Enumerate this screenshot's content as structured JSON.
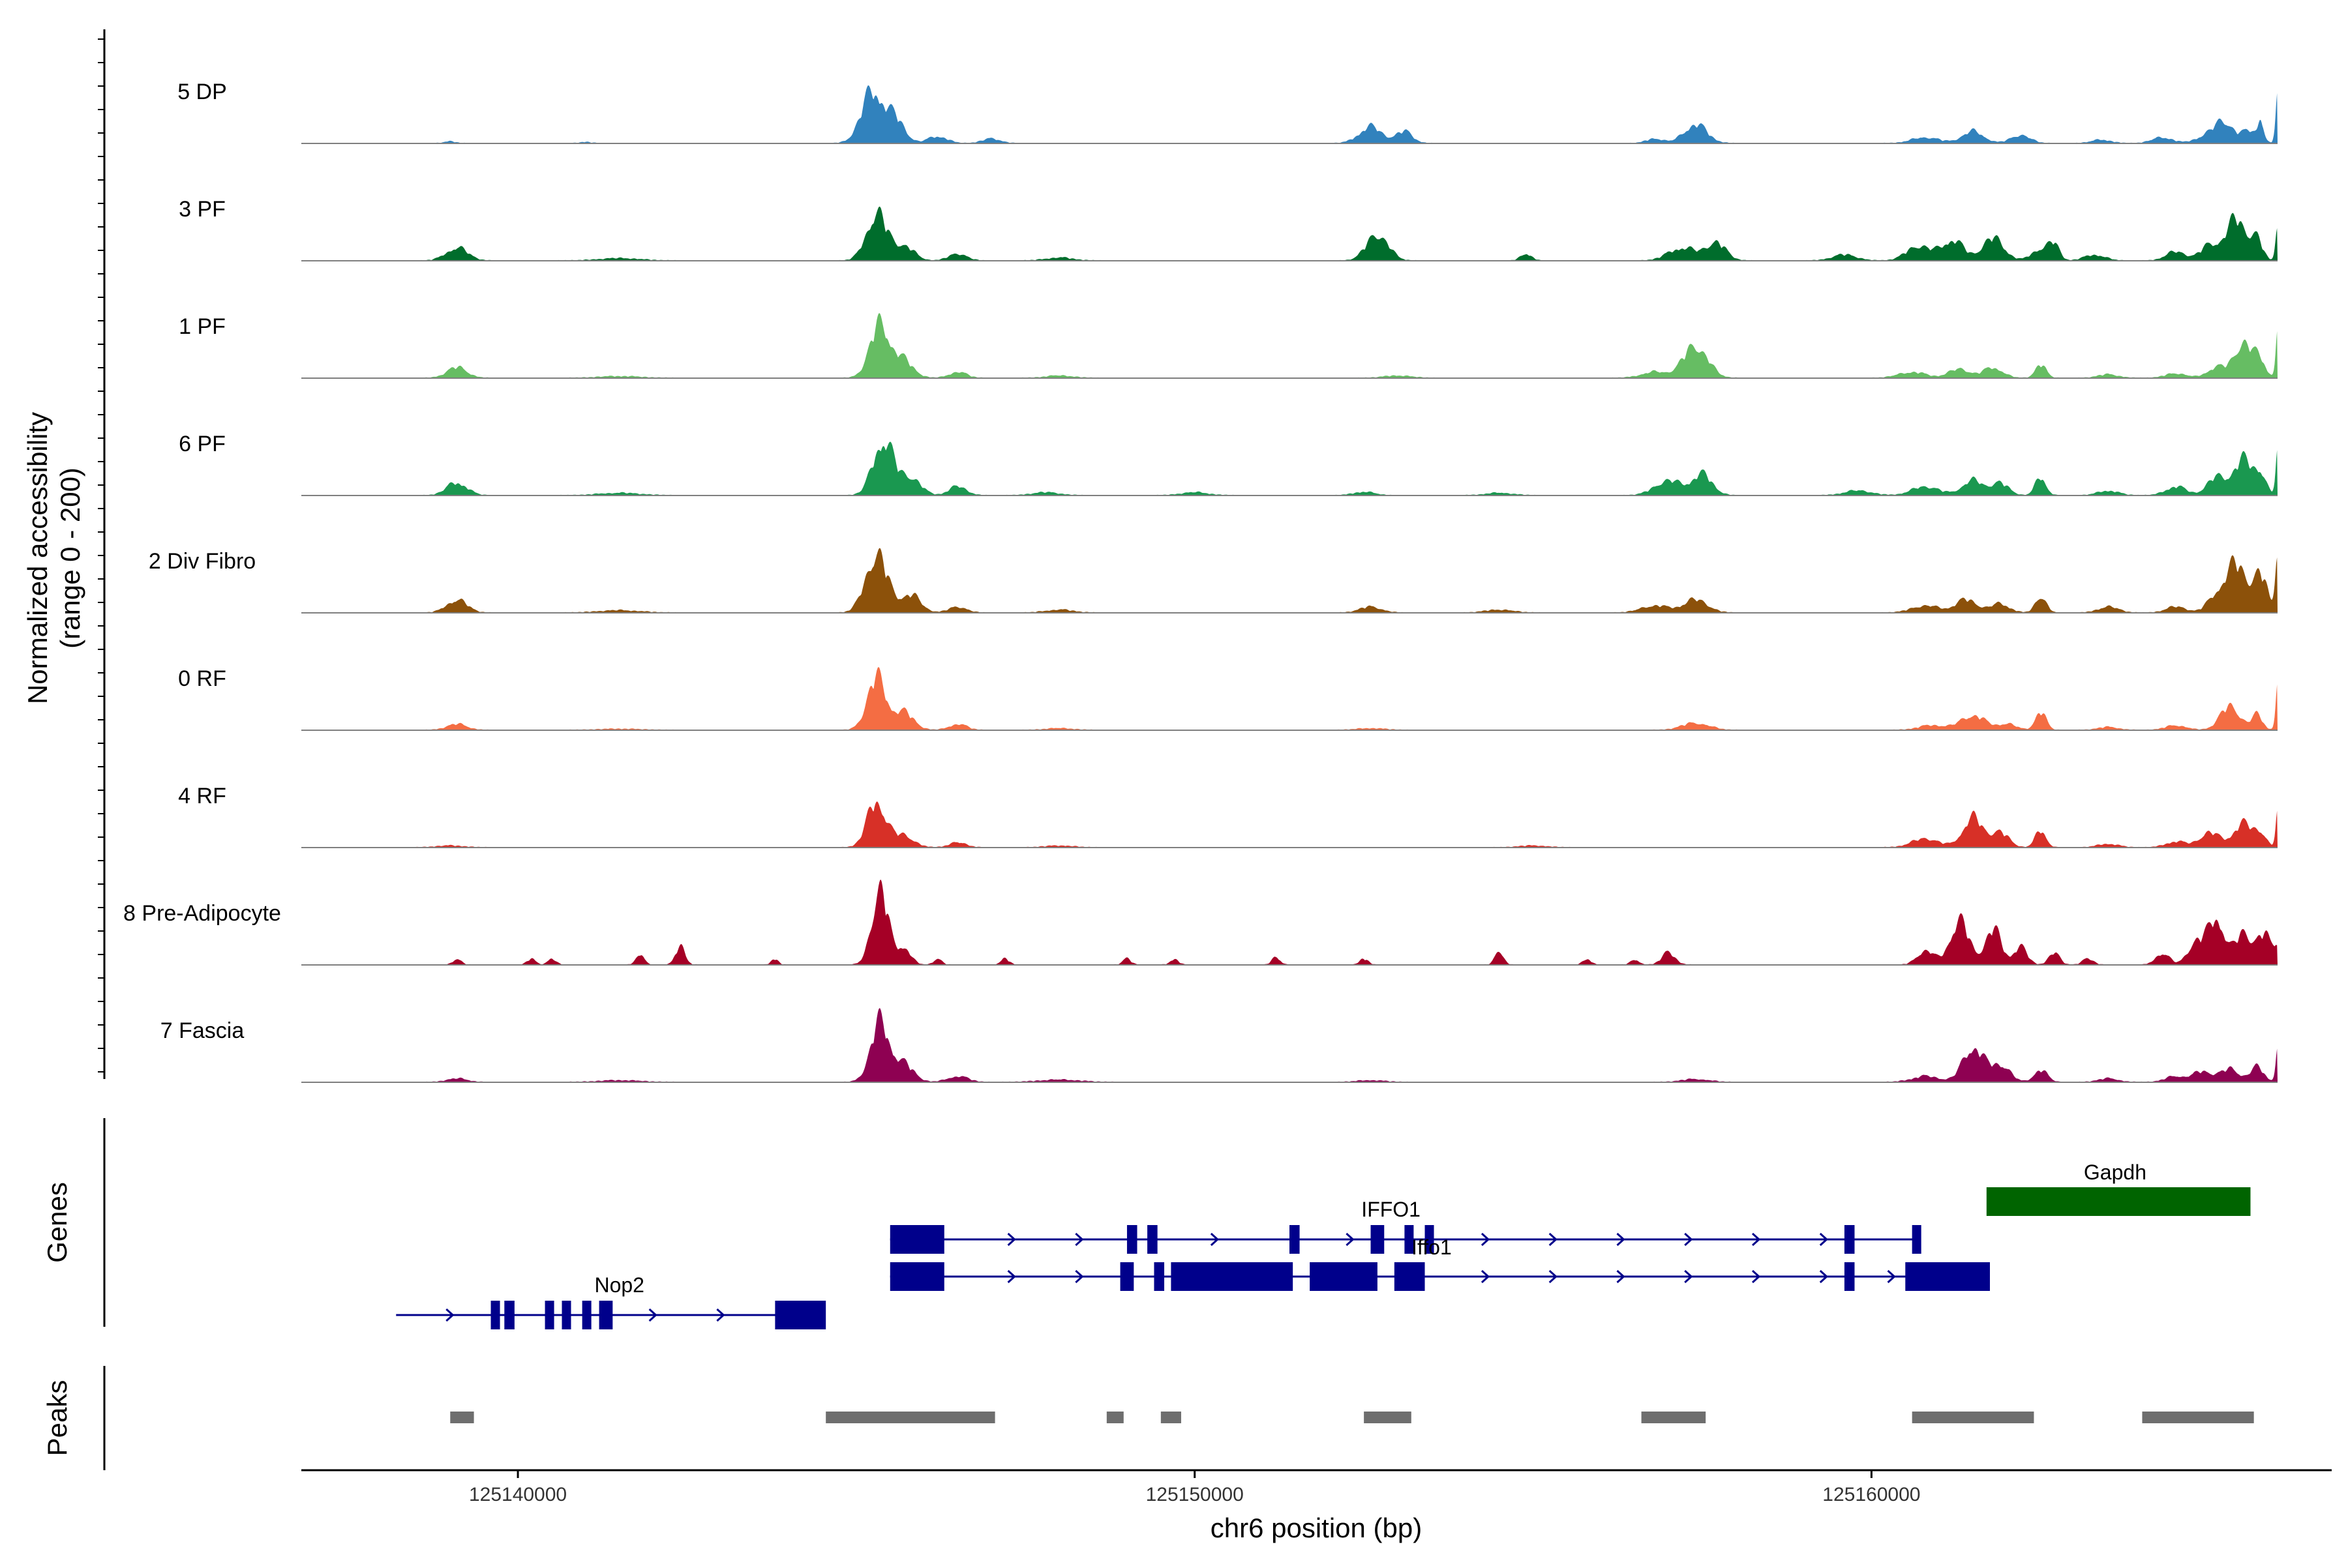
{
  "chart_data": {
    "type": "coverage-tracks",
    "y_axis_title_line1": "Normalized accessibility",
    "y_axis_title_line2": "(range 0 - 200)",
    "xlabel": "chr6 position (bp)",
    "x_range": [
      125136800,
      125166800
    ],
    "x_ticks": [
      125140000,
      125150000,
      125160000
    ],
    "x_tick_labels": [
      "125140000",
      "125150000",
      "125160000"
    ],
    "tracks": [
      {
        "name": "5 DP",
        "color": "#3182bd",
        "peaks": [
          [
            125139000,
            3,
            80
          ],
          [
            125141000,
            2,
            80
          ],
          [
            125145250,
            90,
            170
          ],
          [
            125145600,
            35,
            130
          ],
          [
            125146200,
            12,
            140
          ],
          [
            125147000,
            8,
            130
          ],
          [
            125152600,
            28,
            170
          ],
          [
            125153100,
            20,
            120
          ],
          [
            125157400,
            32,
            170
          ],
          [
            125156800,
            8,
            120
          ],
          [
            125160800,
            10,
            200
          ],
          [
            125161500,
            20,
            160
          ],
          [
            125162200,
            14,
            140
          ],
          [
            125163400,
            6,
            140
          ],
          [
            125164300,
            10,
            150
          ],
          [
            125165200,
            38,
            140
          ],
          [
            125165600,
            22,
            120
          ],
          [
            125165750,
            35,
            40
          ],
          [
            125166000,
            85,
            30
          ],
          [
            125164900,
            10,
            140
          ]
        ]
      },
      {
        "name": "3 PF",
        "color": "#006d2c",
        "peaks": [
          [
            125139100,
            22,
            160
          ],
          [
            125141500,
            4,
            300
          ],
          [
            125145300,
            80,
            150
          ],
          [
            125145700,
            25,
            150
          ],
          [
            125146500,
            12,
            130
          ],
          [
            125148000,
            5,
            200
          ],
          [
            125152700,
            45,
            160
          ],
          [
            125154900,
            12,
            80
          ],
          [
            125157200,
            22,
            200
          ],
          [
            125157700,
            30,
            150
          ],
          [
            125159600,
            10,
            180
          ],
          [
            125160700,
            25,
            180
          ],
          [
            125161200,
            35,
            160
          ],
          [
            125161800,
            38,
            160
          ],
          [
            125162500,
            20,
            130
          ],
          [
            125162700,
            25,
            80
          ],
          [
            125163300,
            10,
            150
          ],
          [
            125164500,
            15,
            150
          ],
          [
            125165000,
            25,
            140
          ],
          [
            125165400,
            70,
            160
          ],
          [
            125165700,
            30,
            80
          ],
          [
            125166000,
            70,
            30
          ]
        ]
      },
      {
        "name": "1 PF",
        "color": "#66bd63",
        "peaks": [
          [
            125139100,
            18,
            150
          ],
          [
            125141500,
            3,
            300
          ],
          [
            125145350,
            90,
            150
          ],
          [
            125145700,
            28,
            150
          ],
          [
            125146500,
            10,
            130
          ],
          [
            125148000,
            4,
            200
          ],
          [
            125153000,
            4,
            200
          ],
          [
            125156800,
            10,
            200
          ],
          [
            125157400,
            55,
            180
          ],
          [
            125160600,
            10,
            200
          ],
          [
            125161300,
            15,
            160
          ],
          [
            125161800,
            18,
            140
          ],
          [
            125162500,
            22,
            80
          ],
          [
            125163500,
            6,
            150
          ],
          [
            125164500,
            8,
            150
          ],
          [
            125165100,
            18,
            140
          ],
          [
            125165500,
            60,
            140
          ],
          [
            125165750,
            25,
            80
          ],
          [
            125166000,
            80,
            30
          ]
        ]
      },
      {
        "name": "6 PF",
        "color": "#1a9850",
        "peaks": [
          [
            125139100,
            22,
            150
          ],
          [
            125141500,
            4,
            300
          ],
          [
            125145400,
            95,
            150
          ],
          [
            125145800,
            30,
            150
          ],
          [
            125146500,
            15,
            130
          ],
          [
            125147800,
            5,
            200
          ],
          [
            125150000,
            5,
            200
          ],
          [
            125152500,
            6,
            150
          ],
          [
            125154500,
            4,
            200
          ],
          [
            125157000,
            25,
            200
          ],
          [
            125157500,
            35,
            150
          ],
          [
            125159800,
            8,
            200
          ],
          [
            125160800,
            15,
            200
          ],
          [
            125161500,
            25,
            160
          ],
          [
            125161900,
            20,
            130
          ],
          [
            125162500,
            30,
            80
          ],
          [
            125163500,
            8,
            150
          ],
          [
            125164500,
            15,
            150
          ],
          [
            125165100,
            30,
            140
          ],
          [
            125165500,
            60,
            150
          ],
          [
            125165750,
            30,
            80
          ],
          [
            125166000,
            75,
            30
          ]
        ]
      },
      {
        "name": "2 Div Fibro",
        "color": "#8c510a",
        "peaks": [
          [
            125139100,
            22,
            150
          ],
          [
            125141500,
            4,
            300
          ],
          [
            125145300,
            100,
            160
          ],
          [
            125145800,
            30,
            150
          ],
          [
            125146500,
            10,
            130
          ],
          [
            125148000,
            5,
            200
          ],
          [
            125152600,
            10,
            160
          ],
          [
            125154500,
            5,
            200
          ],
          [
            125156800,
            12,
            200
          ],
          [
            125157400,
            22,
            180
          ],
          [
            125160800,
            12,
            200
          ],
          [
            125161400,
            22,
            160
          ],
          [
            125161900,
            15,
            140
          ],
          [
            125162500,
            28,
            80
          ],
          [
            125163500,
            10,
            150
          ],
          [
            125164500,
            10,
            150
          ],
          [
            125165100,
            25,
            140
          ],
          [
            125165400,
            80,
            160
          ],
          [
            125165750,
            60,
            100
          ],
          [
            125166000,
            110,
            35
          ]
        ]
      },
      {
        "name": "0 RF",
        "color": "#f46d43",
        "peaks": [
          [
            125139100,
            10,
            150
          ],
          [
            125141500,
            2,
            300
          ],
          [
            125145300,
            88,
            140
          ],
          [
            125145700,
            30,
            150
          ],
          [
            125146500,
            10,
            130
          ],
          [
            125148000,
            3,
            200
          ],
          [
            125152600,
            3,
            200
          ],
          [
            125157400,
            12,
            200
          ],
          [
            125160900,
            8,
            200
          ],
          [
            125161500,
            25,
            180
          ],
          [
            125162000,
            10,
            140
          ],
          [
            125162500,
            30,
            80
          ],
          [
            125163500,
            5,
            150
          ],
          [
            125164500,
            8,
            150
          ],
          [
            125165300,
            40,
            150
          ],
          [
            125165700,
            25,
            80
          ],
          [
            125166000,
            80,
            30
          ]
        ]
      },
      {
        "name": "4 RF",
        "color": "#d73027",
        "peaks": [
          [
            125139000,
            3,
            200
          ],
          [
            125145300,
            78,
            140
          ],
          [
            125145700,
            20,
            150
          ],
          [
            125146500,
            8,
            130
          ],
          [
            125148000,
            3,
            200
          ],
          [
            125155000,
            3,
            200
          ],
          [
            125160800,
            15,
            200
          ],
          [
            125161500,
            50,
            150
          ],
          [
            125161900,
            25,
            130
          ],
          [
            125162500,
            28,
            80
          ],
          [
            125163500,
            6,
            150
          ],
          [
            125164500,
            10,
            150
          ],
          [
            125165000,
            25,
            150
          ],
          [
            125165500,
            40,
            150
          ],
          [
            125165750,
            20,
            80
          ],
          [
            125166000,
            60,
            30
          ]
        ]
      },
      {
        "name": "8 Pre-Adipocyte",
        "color": "#a50026",
        "peaks": [
          [
            125139100,
            10,
            60
          ],
          [
            125140200,
            10,
            60
          ],
          [
            125140500,
            10,
            60
          ],
          [
            125141800,
            18,
            60
          ],
          [
            125142400,
            30,
            70
          ],
          [
            125143800,
            10,
            50
          ],
          [
            125145350,
            130,
            120
          ],
          [
            125145700,
            30,
            100
          ],
          [
            125146200,
            10,
            60
          ],
          [
            125147200,
            10,
            60
          ],
          [
            125149000,
            10,
            60
          ],
          [
            125149700,
            10,
            60
          ],
          [
            125151200,
            12,
            60
          ],
          [
            125152500,
            10,
            60
          ],
          [
            125154500,
            25,
            60
          ],
          [
            125155800,
            10,
            60
          ],
          [
            125156500,
            8,
            60
          ],
          [
            125157000,
            20,
            100
          ],
          [
            125160800,
            25,
            120
          ],
          [
            125161300,
            75,
            140
          ],
          [
            125161800,
            60,
            120
          ],
          [
            125162200,
            30,
            100
          ],
          [
            125162700,
            20,
            80
          ],
          [
            125163200,
            10,
            80
          ],
          [
            125164300,
            20,
            100
          ],
          [
            125164800,
            40,
            120
          ],
          [
            125165100,
            80,
            120
          ],
          [
            125165500,
            55,
            120
          ],
          [
            125165800,
            50,
            100
          ],
          [
            125166000,
            30,
            60
          ]
        ]
      },
      {
        "name": "7 Fascia",
        "color": "#8e0152",
        "peaks": [
          [
            125139100,
            6,
            150
          ],
          [
            125141500,
            3,
            300
          ],
          [
            125145350,
            100,
            140
          ],
          [
            125145700,
            30,
            150
          ],
          [
            125146500,
            10,
            150
          ],
          [
            125148000,
            4,
            300
          ],
          [
            125152600,
            3,
            200
          ],
          [
            125157400,
            5,
            200
          ],
          [
            125160800,
            10,
            200
          ],
          [
            125161500,
            60,
            150
          ],
          [
            125161900,
            30,
            140
          ],
          [
            125162500,
            20,
            100
          ],
          [
            125163500,
            6,
            150
          ],
          [
            125164500,
            10,
            150
          ],
          [
            125164900,
            18,
            140
          ],
          [
            125165300,
            22,
            140
          ],
          [
            125165700,
            25,
            100
          ],
          [
            125166000,
            60,
            30
          ]
        ]
      }
    ],
    "genes": [
      {
        "name": "Gapdh",
        "color": "#006400",
        "start": 125161700,
        "end": 125165600,
        "row": 0,
        "exons": [
          [
            125161700,
            125165600
          ]
        ],
        "label_pos": 125163600,
        "label_row": 0
      },
      {
        "name": "IFFO1",
        "color": "#00008b",
        "start": 125145500,
        "end": 125160700,
        "row": 1,
        "exons": [
          [
            125145500,
            125146300
          ],
          [
            125149000,
            125149150
          ],
          [
            125149300,
            125149450
          ],
          [
            125151400,
            125151550
          ],
          [
            125152600,
            125152800
          ],
          [
            125153100,
            125153200
          ],
          [
            125153400,
            125153500
          ],
          [
            125159600,
            125159750
          ],
          [
            125160600,
            125160700
          ]
        ],
        "label_pos": 125152900,
        "label_row": 1
      },
      {
        "name": "Iffo1",
        "color": "#00008b",
        "start": 125145500,
        "end": 125161700,
        "row": 2,
        "exons": [
          [
            125145500,
            125146300
          ],
          [
            125148900,
            125149100
          ],
          [
            125149400,
            125149550
          ],
          [
            125149650,
            125151450
          ],
          [
            125151700,
            125152700
          ],
          [
            125152950,
            125153400
          ],
          [
            125159600,
            125159750
          ],
          [
            125160500,
            125161750
          ]
        ],
        "label_pos": 125153500,
        "label_row": 2
      },
      {
        "name": "Nop2",
        "color": "#00008b",
        "start": 125138200,
        "end": 125144500,
        "row": 3,
        "exons": [
          [
            125139600,
            125139700
          ],
          [
            125139800,
            125139950
          ],
          [
            125140400,
            125140500
          ],
          [
            125140650,
            125140750
          ],
          [
            125140950,
            125141050
          ],
          [
            125141200,
            125141400
          ],
          [
            125143800,
            125144550
          ]
        ],
        "label_pos": 125141500,
        "label_row": 3
      }
    ],
    "peak_regions": [
      [
        125139000,
        125139350
      ],
      [
        125144550,
        125147050
      ],
      [
        125148700,
        125148950
      ],
      [
        125149500,
        125149800
      ],
      [
        125152500,
        125153200
      ],
      [
        125156600,
        125157550
      ],
      [
        125160600,
        125162400
      ],
      [
        125164000,
        125165650
      ]
    ],
    "panel_labels": {
      "genes": "Genes",
      "peaks": "Peaks"
    }
  }
}
